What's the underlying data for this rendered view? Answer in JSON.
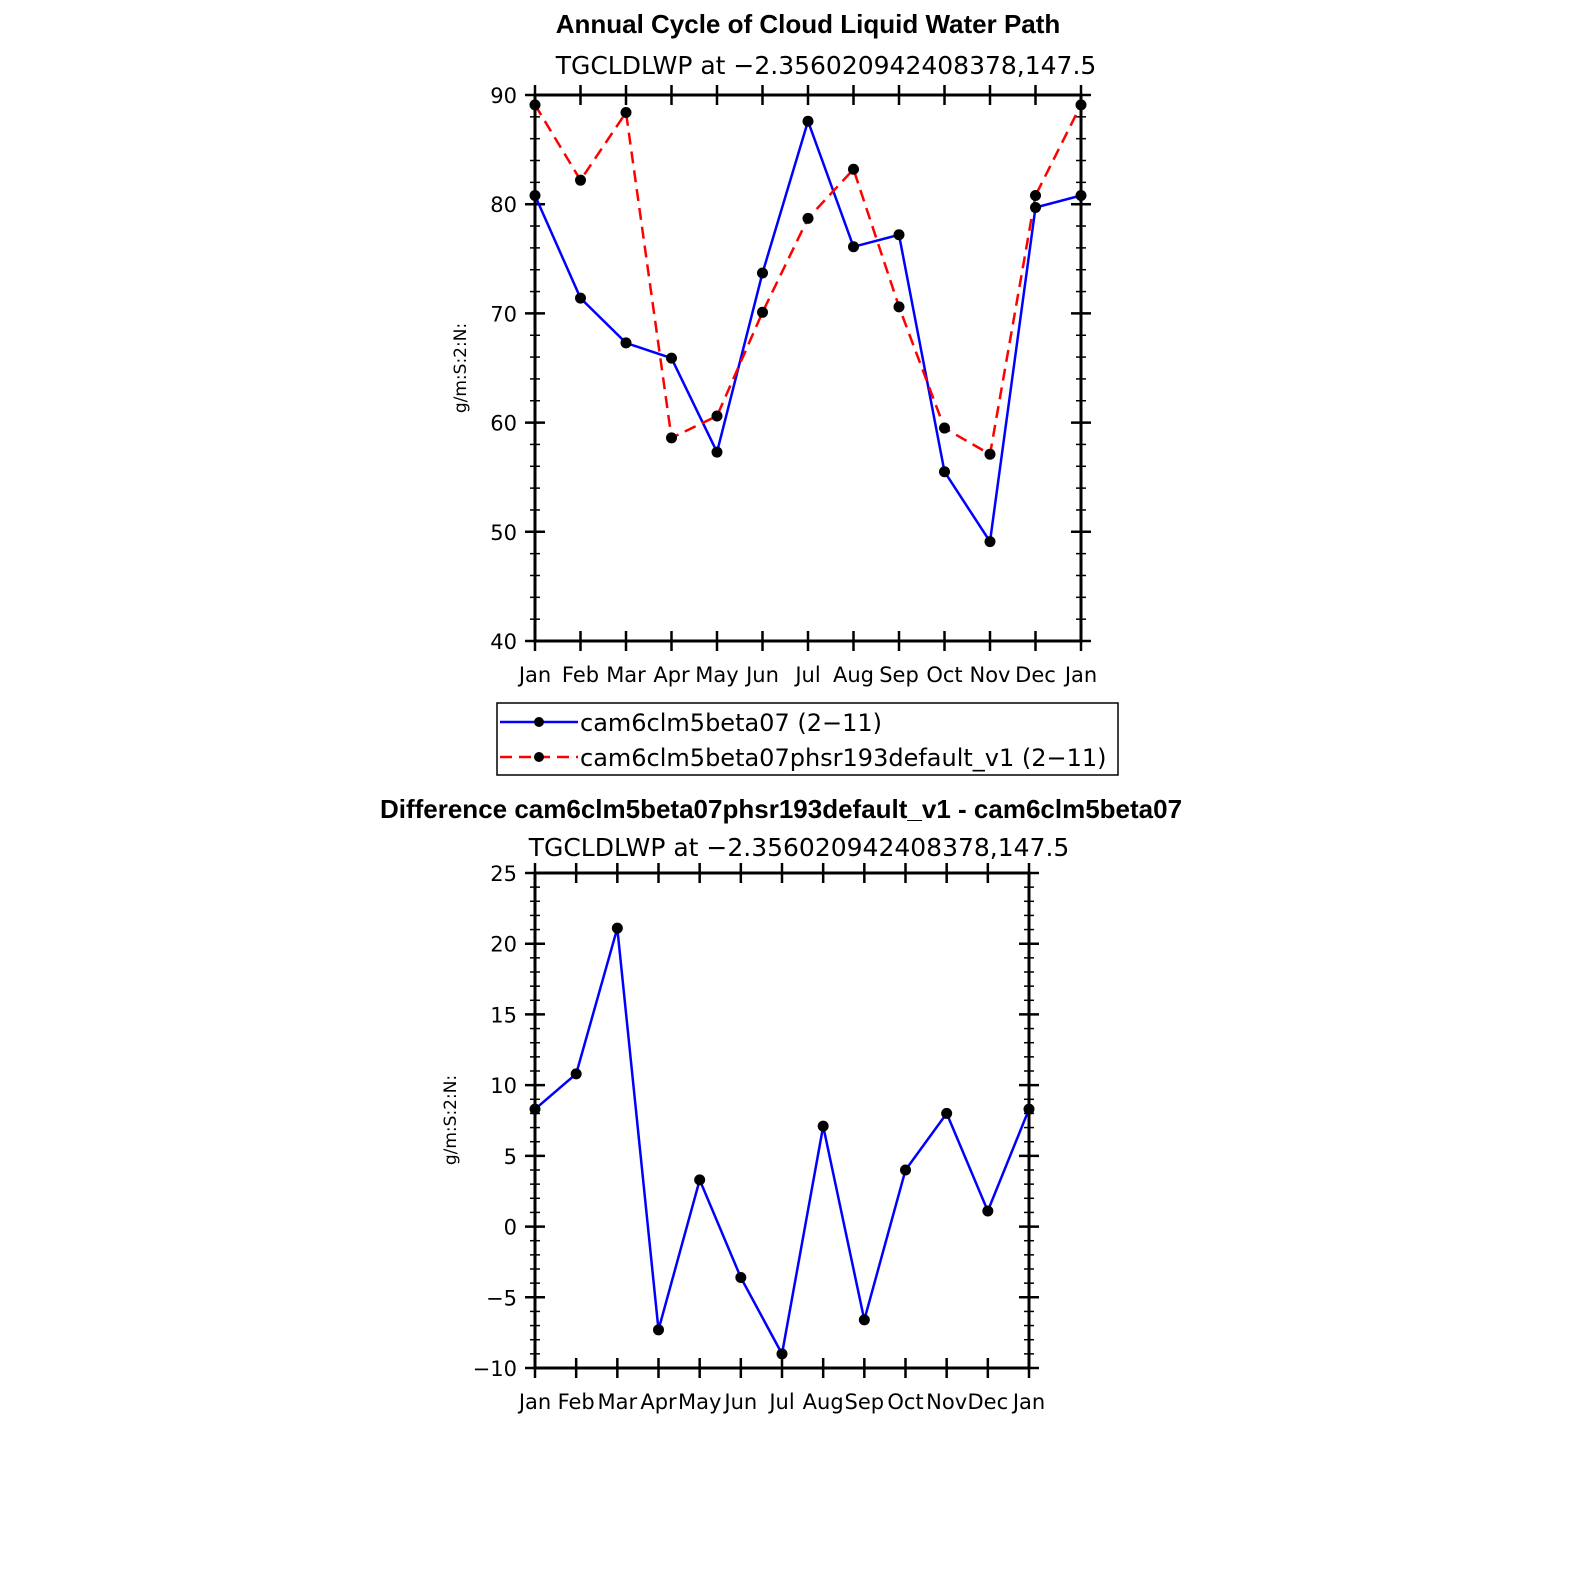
{
  "chart_data": [
    {
      "type": "line",
      "title": "Annual Cycle of Cloud Liquid Water Path",
      "subtitle": "TGCLDLWP at −2.356020942408378,147.5",
      "ylabel": "g/m:S:2:N:",
      "xlabel": "",
      "ylim": [
        40,
        90
      ],
      "yticks": [
        "40",
        "50",
        "60",
        "70",
        "80",
        "90"
      ],
      "categories": [
        "Jan",
        "Feb",
        "Mar",
        "Apr",
        "May",
        "Jun",
        "Jul",
        "Aug",
        "Sep",
        "Oct",
        "Nov",
        "Dec",
        "Jan"
      ],
      "series": [
        {
          "name": "cam6clm5beta07 (2−11)",
          "color": "#0000ff",
          "dash": "solid",
          "values": [
            80.8,
            71.4,
            67.3,
            65.9,
            57.3,
            73.7,
            87.6,
            76.1,
            77.2,
            55.5,
            49.1,
            79.7,
            80.8
          ]
        },
        {
          "name": "cam6clm5beta07phsr193default_v1 (2−11)",
          "color": "#ff0000",
          "dash": "dashed",
          "values": [
            89.1,
            82.2,
            88.4,
            58.6,
            60.6,
            70.1,
            78.7,
            83.2,
            70.6,
            59.5,
            57.1,
            80.8,
            89.1
          ]
        }
      ],
      "legend": "below"
    },
    {
      "type": "line",
      "title": "Difference cam6clm5beta07phsr193default_v1 - cam6clm5beta07",
      "subtitle": "TGCLDLWP at −2.356020942408378,147.5",
      "ylabel": "g/m:S:2:N:",
      "xlabel": "",
      "ylim": [
        -10,
        25
      ],
      "yticks": [
        "−10",
        "−5",
        "0",
        "5",
        "10",
        "15",
        "20",
        "25"
      ],
      "categories": [
        "Jan",
        "Feb",
        "Mar",
        "Apr",
        "May",
        "Jun",
        "Jul",
        "Aug",
        "Sep",
        "Oct",
        "Nov",
        "Dec",
        "Jan"
      ],
      "series": [
        {
          "color": "#0000ff",
          "dash": "solid",
          "values": [
            8.3,
            10.8,
            21.1,
            -7.3,
            3.3,
            -3.6,
            -9.0,
            7.1,
            -6.6,
            4.0,
            8.0,
            1.1,
            8.3
          ]
        }
      ]
    }
  ]
}
